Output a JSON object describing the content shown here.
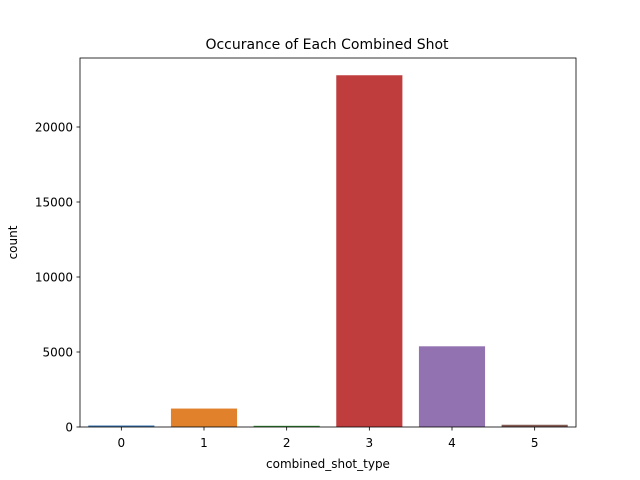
{
  "chart_data": {
    "type": "bar",
    "title": "Occurance of Each Combined Shot",
    "xlabel": "combined_shot_type",
    "ylabel": "count",
    "categories": [
      "0",
      "1",
      "2",
      "3",
      "4",
      "5"
    ],
    "values": [
      100,
      1230,
      80,
      23450,
      5380,
      150
    ],
    "ylim": [
      0,
      24600
    ],
    "yticks": [
      0,
      5000,
      10000,
      15000,
      20000
    ],
    "ytick_labels": [
      "0",
      "5000",
      "10000",
      "15000",
      "20000"
    ],
    "grid": false,
    "colors": [
      "#3a75af",
      "#e1812c",
      "#3a923a",
      "#c03d3e",
      "#9372b2",
      "#845b53"
    ]
  }
}
